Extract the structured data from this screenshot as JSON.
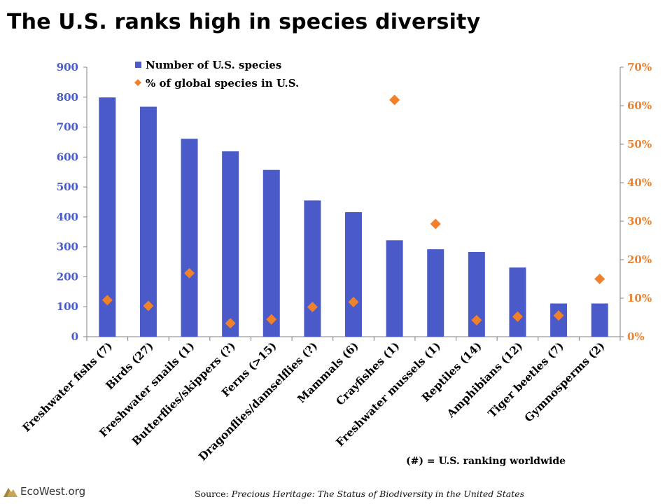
{
  "title": "The U.S. ranks high in species diversity",
  "note": "(#) = U.S. ranking worldwide",
  "source": {
    "prefix": "Source: ",
    "italic": "Precious Heritage: The Status of Biodiversity in the United States"
  },
  "logo": {
    "text": "EcoWest.org"
  },
  "colors": {
    "bar": "#4a5bc9",
    "marker": "#f0802a",
    "left_axis": "#4a5bc9",
    "right_axis": "#f0802a"
  },
  "chart_data": {
    "type": "bar",
    "categories": [
      "Freshwater fishs (7)",
      "Birds (27)",
      "Freshwater snails (1)",
      "Butterflies/skippers (?)",
      "Ferns (>15)",
      "Dragonflies/damselflies (?)",
      "Mammals (6)",
      "Crayfishes (1)",
      "Freshwater mussels (1)",
      "Reptiles (14)",
      "Amphibians (12)",
      "Tiger beetles (7)",
      "Gymnosperms (2)"
    ],
    "series": [
      {
        "name": "Number of U.S. species",
        "type": "bar",
        "axis": "left",
        "values": [
          799,
          768,
          661,
          619,
          557,
          455,
          416,
          322,
          292,
          283,
          231,
          111,
          111
        ]
      },
      {
        "name": "% of global species in U.S.",
        "type": "scatter",
        "axis": "right",
        "values": [
          9.5,
          8,
          16.5,
          3.5,
          4.5,
          7.7,
          9,
          61.5,
          29.3,
          4.3,
          5.2,
          5.5,
          15
        ]
      }
    ],
    "y_left": {
      "ylim": [
        0,
        900
      ],
      "ticks": [
        "0",
        "100",
        "200",
        "300",
        "400",
        "500",
        "600",
        "700",
        "800",
        "900"
      ]
    },
    "y_right": {
      "ylim": [
        0,
        70
      ],
      "ticks": [
        "0%",
        "10%",
        "20%",
        "30%",
        "40%",
        "50%",
        "60%",
        "70%"
      ]
    },
    "legend": "top-left",
    "grid": false
  }
}
